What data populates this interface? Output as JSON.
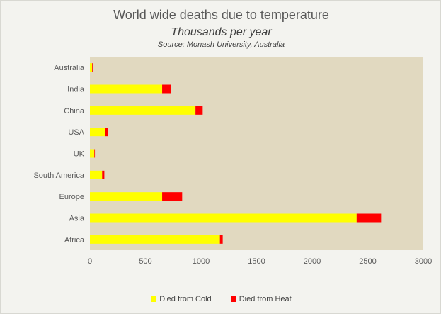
{
  "chart_data": {
    "type": "bar",
    "orientation": "horizontal",
    "stacked": true,
    "title": "World wide deaths due to temperature",
    "subtitle": "Thousands per year",
    "source": "Source:  Monash University, Australia",
    "categories": [
      "Australia",
      "India",
      "China",
      "USA",
      "UK",
      "South America",
      "Europe",
      "Asia",
      "Africa"
    ],
    "series": [
      {
        "name": "Died from Cold",
        "color": "#ffff00",
        "values": [
          20,
          650,
          950,
          140,
          40,
          110,
          650,
          2400,
          1170
        ]
      },
      {
        "name": "Died from Heat",
        "color": "#ff0000",
        "values": [
          5,
          80,
          65,
          20,
          5,
          20,
          180,
          220,
          25
        ]
      }
    ],
    "xlim": [
      0,
      3000
    ],
    "xticks": [
      "0",
      "500",
      "1000",
      "1500",
      "2000",
      "2500",
      "3000"
    ],
    "legend_position": "bottom",
    "plot_background": "#e1d9c0",
    "grid": false
  }
}
